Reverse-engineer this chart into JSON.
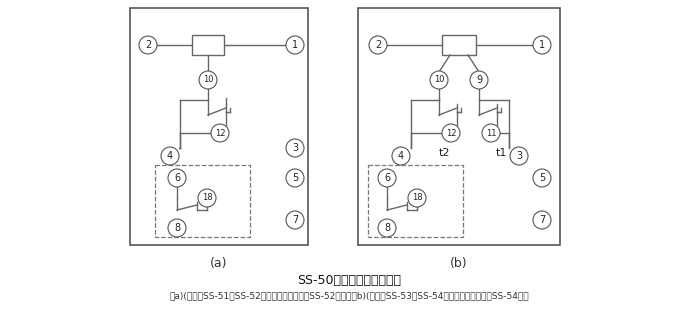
{
  "title": "SS-50系列背后端子接线图",
  "subtitle": "（a)(背视）SS-51、SS-52型，图中虚线部分仅SS-52型有；（b)(背视）SS-53、SS-54型，图中虚线部分仅SS-54型有",
  "label_a": "(a)",
  "label_b": "(b)",
  "bg_color": "#ffffff",
  "line_color": "#666666",
  "circle_edge_color": "#555555",
  "font_size_number": 7,
  "font_size_label": 9,
  "font_size_title": 9,
  "font_size_subtitle": 7
}
